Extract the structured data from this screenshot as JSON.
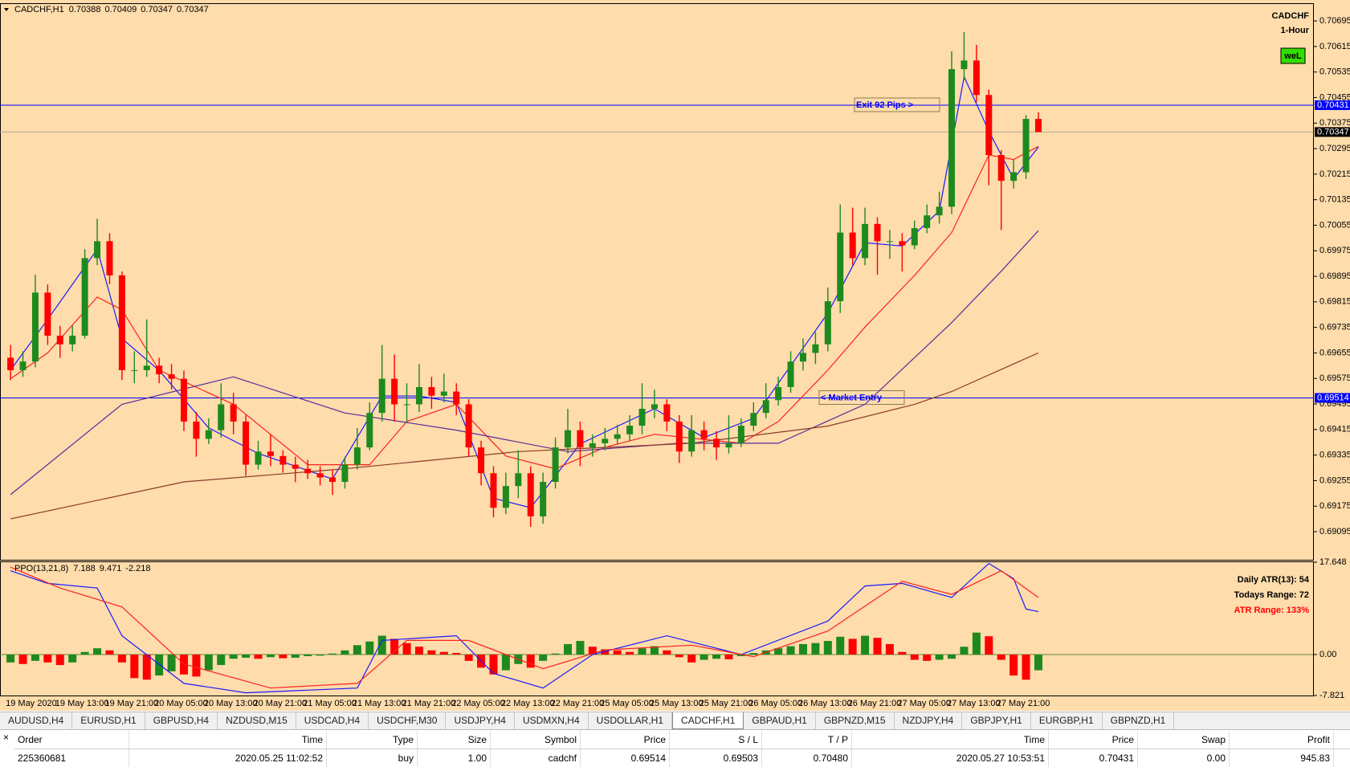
{
  "chart_data": [
    {
      "type": "candlestick",
      "title": "CADCHF,H1",
      "header_values": [
        0.70388,
        0.70409,
        0.70347,
        0.70347
      ],
      "symbol": "CADCHF",
      "timeframe": "1-Hour",
      "badge": "weL",
      "background": "#fedcab",
      "up_color": "#1e8a1e",
      "down_color": "#ff0000",
      "ylim": [
        0.69007,
        0.70748
      ],
      "yticks": [
        0.70695,
        0.70615,
        0.70535,
        0.70455,
        0.70375,
        0.70295,
        0.70215,
        0.70135,
        0.70055,
        0.69975,
        0.69895,
        0.69815,
        0.69735,
        0.69655,
        0.69575,
        0.69495,
        0.69415,
        0.69335,
        0.69255,
        0.69175,
        0.69095
      ],
      "categories": [
        "19 May 2020",
        null,
        null,
        null,
        "19 May 13:00",
        null,
        null,
        null,
        "19 May 21:00",
        null,
        null,
        null,
        "20 May 05:00",
        null,
        null,
        null,
        "20 May 13:00",
        null,
        null,
        null,
        "20 May 21:00",
        null,
        null,
        null,
        "21 May 05:00",
        null,
        null,
        null,
        "21 May 13:00",
        null,
        null,
        null,
        "21 May 21:00",
        null,
        null,
        null,
        "22 May 05:00",
        null,
        null,
        null,
        "22 May 13:00",
        null,
        null,
        null,
        "22 May 21:00",
        null,
        null,
        null,
        "25 May 05:00",
        null,
        null,
        null,
        "25 May 13:00",
        null,
        null,
        null,
        "25 May 21:00",
        null,
        null,
        null,
        "26 May 05:00",
        null,
        null,
        null,
        "26 May 13:00",
        null,
        null,
        null,
        "26 May 21:00",
        null,
        null,
        null,
        "27 May 05:00",
        null,
        null,
        null,
        "27 May 13:00",
        null,
        null,
        null,
        "27 May 21:00",
        null,
        null,
        null
      ],
      "candles": [
        [
          0.6964,
          0.6968,
          0.6957,
          0.69601
        ],
        [
          0.69601,
          0.6966,
          0.6958,
          0.69628
        ],
        [
          0.69628,
          0.699,
          0.6961,
          0.69844
        ],
        [
          0.69844,
          0.6987,
          0.6968,
          0.69709
        ],
        [
          0.69709,
          0.6974,
          0.6964,
          0.69682
        ],
        [
          0.69682,
          0.6974,
          0.6966,
          0.69709
        ],
        [
          0.69709,
          0.6998,
          0.697,
          0.69952
        ],
        [
          0.69952,
          0.70075,
          0.6993,
          0.70005
        ],
        [
          0.70005,
          0.7003,
          0.6987,
          0.69898
        ],
        [
          0.69898,
          0.6991,
          0.6957,
          0.69601
        ],
        [
          0.69601,
          0.6966,
          0.6956,
          0.69601
        ],
        [
          0.69601,
          0.6976,
          0.6958,
          0.69615
        ],
        [
          0.69615,
          0.6964,
          0.6956,
          0.69588
        ],
        [
          0.69588,
          0.6962,
          0.6954,
          0.69574
        ],
        [
          0.69574,
          0.696,
          0.6941,
          0.6944
        ],
        [
          0.6944,
          0.6947,
          0.6933,
          0.69386
        ],
        [
          0.69386,
          0.6945,
          0.6937,
          0.69413
        ],
        [
          0.69413,
          0.6956,
          0.6939,
          0.69494
        ],
        [
          0.69494,
          0.6953,
          0.694,
          0.6944
        ],
        [
          0.6944,
          0.6946,
          0.6927,
          0.69305
        ],
        [
          0.69305,
          0.6938,
          0.6929,
          0.69346
        ],
        [
          0.69346,
          0.694,
          0.693,
          0.69332
        ],
        [
          0.69332,
          0.6935,
          0.6928,
          0.69305
        ],
        [
          0.69305,
          0.6933,
          0.6925,
          0.69292
        ],
        [
          0.69292,
          0.6932,
          0.6926,
          0.69278
        ],
        [
          0.69278,
          0.693,
          0.6924,
          0.69265
        ],
        [
          0.69265,
          0.6929,
          0.6921,
          0.69251
        ],
        [
          0.69251,
          0.6933,
          0.6923,
          0.69305
        ],
        [
          0.69305,
          0.6942,
          0.6929,
          0.69359
        ],
        [
          0.69359,
          0.695,
          0.6935,
          0.69467
        ],
        [
          0.69467,
          0.6968,
          0.6944,
          0.69574
        ],
        [
          0.69574,
          0.6965,
          0.6944,
          0.69494
        ],
        [
          0.69494,
          0.6956,
          0.6944,
          0.69494
        ],
        [
          0.69494,
          0.6962,
          0.6947,
          0.69548
        ],
        [
          0.69548,
          0.6958,
          0.6948,
          0.69521
        ],
        [
          0.69521,
          0.6959,
          0.695,
          0.69534
        ],
        [
          0.69534,
          0.6956,
          0.6946,
          0.69494
        ],
        [
          0.69494,
          0.6951,
          0.6933,
          0.69359
        ],
        [
          0.69359,
          0.6938,
          0.6924,
          0.69278
        ],
        [
          0.69278,
          0.693,
          0.6914,
          0.6917
        ],
        [
          0.6917,
          0.6928,
          0.6915,
          0.69238
        ],
        [
          0.69238,
          0.6935,
          0.692,
          0.69278
        ],
        [
          0.69278,
          0.693,
          0.6911,
          0.69143
        ],
        [
          0.69143,
          0.6928,
          0.6912,
          0.69251
        ],
        [
          0.69251,
          0.6939,
          0.6923,
          0.69359
        ],
        [
          0.69359,
          0.6948,
          0.6934,
          0.69413
        ],
        [
          0.69413,
          0.6944,
          0.693,
          0.69359
        ],
        [
          0.69359,
          0.694,
          0.6933,
          0.69372
        ],
        [
          0.69372,
          0.6942,
          0.6935,
          0.69386
        ],
        [
          0.69386,
          0.6943,
          0.6937,
          0.694
        ],
        [
          0.694,
          0.6946,
          0.6938,
          0.69427
        ],
        [
          0.69427,
          0.6956,
          0.694,
          0.6948
        ],
        [
          0.6948,
          0.6954,
          0.6945,
          0.69494
        ],
        [
          0.69494,
          0.6951,
          0.6941,
          0.6944
        ],
        [
          0.6944,
          0.6946,
          0.6931,
          0.69346
        ],
        [
          0.69346,
          0.6946,
          0.6933,
          0.69413
        ],
        [
          0.69413,
          0.6944,
          0.6935,
          0.69386
        ],
        [
          0.69386,
          0.6941,
          0.6932,
          0.69359
        ],
        [
          0.69359,
          0.6946,
          0.6934,
          0.69372
        ],
        [
          0.69372,
          0.6945,
          0.6936,
          0.69427
        ],
        [
          0.69427,
          0.695,
          0.6941,
          0.69467
        ],
        [
          0.69467,
          0.6956,
          0.6945,
          0.69507
        ],
        [
          0.69507,
          0.6958,
          0.6949,
          0.69548
        ],
        [
          0.69548,
          0.6966,
          0.6953,
          0.69628
        ],
        [
          0.69628,
          0.697,
          0.696,
          0.69655
        ],
        [
          0.69655,
          0.6972,
          0.6962,
          0.69682
        ],
        [
          0.69682,
          0.6986,
          0.6966,
          0.69817
        ],
        [
          0.69817,
          0.7012,
          0.6978,
          0.70032
        ],
        [
          0.70032,
          0.7011,
          0.6993,
          0.69952
        ],
        [
          0.69952,
          0.7011,
          0.6993,
          0.70059
        ],
        [
          0.70059,
          0.7008,
          0.699,
          0.70005
        ],
        [
          0.70005,
          0.7004,
          0.6995,
          0.70005
        ],
        [
          0.70005,
          0.7003,
          0.6991,
          0.69992
        ],
        [
          0.69992,
          0.7007,
          0.6998,
          0.70046
        ],
        [
          0.70046,
          0.7012,
          0.7003,
          0.70086
        ],
        [
          0.70086,
          0.7016,
          0.7006,
          0.70113
        ],
        [
          0.70113,
          0.706,
          0.7009,
          0.70544
        ],
        [
          0.70544,
          0.7066,
          0.7051,
          0.70571
        ],
        [
          0.70571,
          0.7062,
          0.7044,
          0.70463
        ],
        [
          0.70463,
          0.7048,
          0.7018,
          0.70275
        ],
        [
          0.70275,
          0.7029,
          0.7004,
          0.70194
        ],
        [
          0.70194,
          0.7026,
          0.7017,
          0.70221
        ],
        [
          0.70221,
          0.704,
          0.702,
          0.70388
        ],
        [
          0.70388,
          0.70409,
          0.70347,
          0.70347
        ]
      ],
      "lines": [
        {
          "color": "#1a1aff",
          "x": [
            0,
            3,
            7,
            9,
            12,
            16,
            20,
            26,
            30,
            33,
            36,
            39,
            42,
            46,
            52,
            56,
            60,
            66,
            69,
            72,
            75,
            77,
            79,
            81,
            83
          ],
          "values": [
            0.69601,
            0.6976,
            0.6998,
            0.697,
            0.696,
            0.6942,
            0.6934,
            0.6926,
            0.6952,
            0.6952,
            0.695,
            0.692,
            0.6917,
            0.6937,
            0.6948,
            0.6939,
            0.6945,
            0.6978,
            0.7,
            0.6999,
            0.701,
            0.7052,
            0.7035,
            0.702,
            0.703
          ]
        },
        {
          "color": "#ff2020",
          "x": [
            0,
            3,
            7,
            9,
            12,
            18,
            24,
            29,
            32,
            36,
            40,
            44,
            48,
            52,
            59,
            62,
            66,
            69,
            73,
            76,
            79,
            81,
            83
          ],
          "values": [
            0.69574,
            0.69655,
            0.6983,
            0.6979,
            0.69601,
            0.69494,
            0.69305,
            0.69305,
            0.6944,
            0.69494,
            0.69332,
            0.69292,
            0.69359,
            0.694,
            0.69372,
            0.6944,
            0.69601,
            0.69736,
            0.69898,
            0.70032,
            0.70275,
            0.70261,
            0.70302
          ]
        },
        {
          "color": "#5a2a9a",
          "x": [
            0,
            9,
            18,
            27,
            36,
            45,
            54,
            62,
            69,
            76,
            80,
            83
          ],
          "values": [
            0.69211,
            0.69494,
            0.6958,
            0.69467,
            0.69413,
            0.69346,
            0.69372,
            0.69372,
            0.69494,
            0.6975,
            0.69911,
            0.70038
          ]
        },
        {
          "color": "#8b3a2a",
          "x": [
            0,
            14,
            27,
            41,
            55,
            66,
            73,
            76,
            83
          ],
          "values": [
            0.69135,
            0.69251,
            0.69292,
            0.69346,
            0.69372,
            0.69426,
            0.69494,
            0.69534,
            0.69655
          ]
        }
      ],
      "hlines": [
        {
          "value": 0.70431,
          "color": "#0000ff",
          "label": "Exit 92 Pips >"
        },
        {
          "value": 0.69514,
          "color": "#0000ff",
          "label": "< Market Entry"
        },
        {
          "value": 0.70347,
          "color": "#b8a890"
        }
      ]
    },
    {
      "type": "macd",
      "title": "PPO(13,21,8)",
      "header_values": [
        7.188,
        9.471,
        -2.218
      ],
      "up_color": "#1e8a1e",
      "down_color": "#ff0000",
      "ylim": [
        -7.821,
        17.648
      ],
      "yticks": [
        17.648,
        {
          "value": 0,
          "label": "0.00"
        },
        -7.821
      ],
      "values": [
        -1.5,
        -1.8,
        -1.2,
        -1.5,
        -2,
        -1.5,
        0.5,
        1.2,
        0.8,
        -1.5,
        -4.5,
        -4.8,
        -4,
        -3.2,
        -3.8,
        -4.2,
        -3,
        -2,
        -0.8,
        -0.6,
        -0.8,
        -0.5,
        -0.7,
        -0.6,
        -0.3,
        -0.2,
        0.2,
        0.8,
        1.8,
        2.5,
        3.6,
        3,
        2.2,
        1.5,
        0.8,
        0.5,
        0.3,
        -1.2,
        -2.5,
        -3.8,
        -3,
        -1.8,
        -2.5,
        -1.2,
        0.2,
        2,
        2.6,
        1.5,
        1,
        0.8,
        0.5,
        1.2,
        1.6,
        0.8,
        -0.5,
        -1.5,
        -1,
        -0.8,
        -0.9,
        -0.3,
        0.3,
        0.8,
        1.2,
        1.6,
        2,
        2.2,
        2.6,
        3.4,
        3,
        3.6,
        3.2,
        2,
        0.5,
        -1,
        -1.2,
        -1,
        -0.8,
        1.5,
        4.2,
        3.5,
        -1,
        -4,
        -4.8,
        -3
      ],
      "lines": [
        {
          "color": "#1a1aff",
          "x": [
            0,
            3,
            7,
            9,
            14,
            19,
            28,
            30,
            36,
            39,
            43,
            47,
            53,
            59,
            66,
            69,
            72,
            76,
            79,
            81,
            82,
            83
          ],
          "values": [
            16,
            13.6,
            12.7,
            3.6,
            -5.5,
            -7.3,
            -6.4,
            2.7,
            3.6,
            -3.6,
            -6.4,
            0,
            3.6,
            0,
            6.4,
            13.1,
            13.6,
            10.9,
            17.4,
            14.5,
            8.7,
            8.2
          ]
        },
        {
          "color": "#ff2020",
          "x": [
            0,
            4,
            9,
            14,
            21,
            28,
            32,
            37,
            43,
            48,
            55,
            60,
            66,
            72,
            76,
            80,
            83
          ],
          "values": [
            16.7,
            12.7,
            9.1,
            -1.8,
            -6.4,
            -5.5,
            2.7,
            2.7,
            -2.7,
            0.9,
            1.8,
            -0.4,
            4.5,
            14,
            11.5,
            16,
            10.9
          ]
        }
      ],
      "info": [
        {
          "text": "Daily ATR(13): 54",
          "color": "#000000"
        },
        {
          "text": "Todays Range: 72",
          "color": "#000000"
        },
        {
          "text": "ATR Range: 133%",
          "color": "#ff0000"
        }
      ]
    }
  ],
  "tabs": {
    "items": [
      "AUDUSD,H4",
      "EURUSD,H1",
      "GBPUSD,H4",
      "NZDUSD,M15",
      "USDCAD,H4",
      "USDCHF,M30",
      "USDJPY,H4",
      "USDMXN,H4",
      "USDOLLAR,H1",
      "CADCHF,H1",
      "GBPAUD,H1",
      "GBPNZD,M15",
      "NZDJPY,H4",
      "GBPJPY,H1",
      "EURGBP,H1",
      "GBPNZD,H1"
    ],
    "active": 9
  },
  "table": {
    "columns": [
      "Order",
      "Time",
      "Type",
      "Size",
      "Symbol",
      "Price",
      "S / L",
      "T / P",
      "Time",
      "Price",
      "Swap",
      "Profit"
    ],
    "rows": [
      [
        "225360681",
        "2020.05.25 11:02:52",
        "buy",
        "1.00",
        "cadchf",
        "0.69514",
        "0.69503",
        "0.70480",
        "2020.05.27 10:53:51",
        "0.70431",
        "0.00",
        "945.83"
      ]
    ]
  }
}
